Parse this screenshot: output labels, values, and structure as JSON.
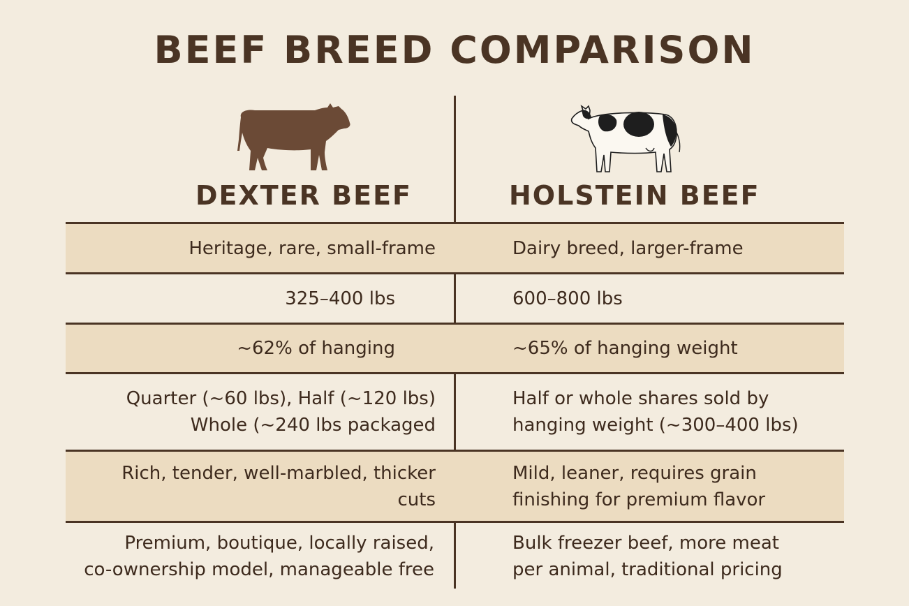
{
  "title": "BEEF BREED COMPARISON",
  "breeds": {
    "left": {
      "name": "DEXTER BEEF",
      "icon": "brown-cow-icon",
      "color": "#6b4a36"
    },
    "right": {
      "name": "HOLSTEIN BEEF",
      "icon": "holstein-cow-icon",
      "color": "#1e1e1e"
    }
  },
  "rows": [
    {
      "left": "Heritage, rare, small-frame",
      "right": "Dairy breed, larger-frame"
    },
    {
      "left": "325–400 lbs",
      "right": "600–800 lbs"
    },
    {
      "left": "~62% of hanging",
      "right": "~65% of hanging weight"
    },
    {
      "left": "Quarter (~60 lbs), Half (~120 lbs)\nWhole (~240 lbs packaged",
      "right": "Half or whole shares sold by\nhanging weight (~300–400 lbs)"
    },
    {
      "left": "Rich, tender, well-marbled, thicker\ncuts",
      "right": "Mild, leaner, requires grain\nfinishing for premium flavor"
    },
    {
      "left": "Premium, boutique, locally raised,\nco-ownership model, manageable free",
      "right": "Bulk freezer beef, more meat\nper animal, traditional pricing"
    }
  ],
  "colors": {
    "background": "#f3ecdf",
    "shaded_row": "#ecdcc1",
    "text": "#4a3424"
  }
}
